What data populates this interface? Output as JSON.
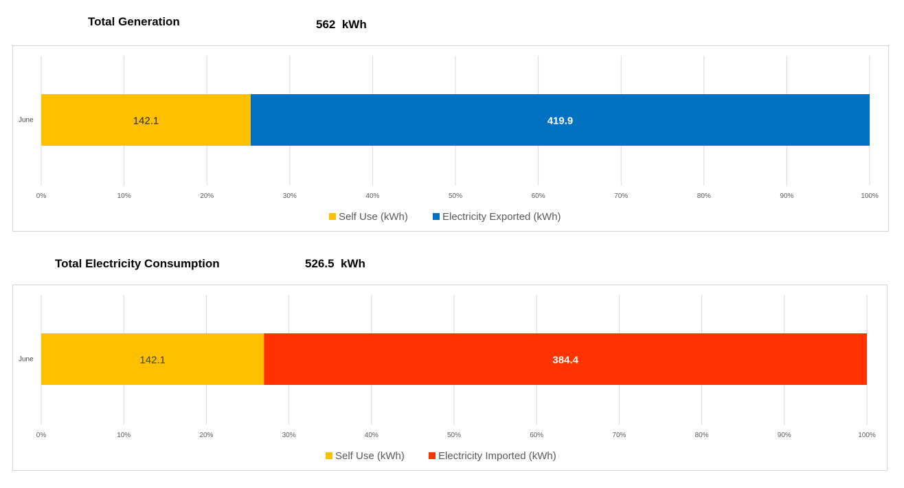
{
  "charts": [
    {
      "heading": "Total Generation",
      "total_value": "562",
      "total_unit": "kWh",
      "chart_data": {
        "type": "bar",
        "orientation": "horizontal",
        "stacked": "100%",
        "categories": [
          "June"
        ],
        "series": [
          {
            "name": "Self Use (kWh)",
            "values": [
              142.1
            ],
            "color": "#FFC000",
            "label_color": "#262626"
          },
          {
            "name": "Electricity Exported (kWh)",
            "values": [
              419.9
            ],
            "color": "#0070C0",
            "label_color": "#FFFFFF"
          }
        ],
        "xticks": [
          "0%",
          "10%",
          "20%",
          "30%",
          "40%",
          "50%",
          "60%",
          "70%",
          "80%",
          "90%",
          "100%"
        ],
        "xlim": [
          0,
          100
        ],
        "grid": true,
        "legend": "bottom"
      }
    },
    {
      "heading": "Total Electricity Consumption",
      "total_value": "526.5",
      "total_unit": "kWh",
      "chart_data": {
        "type": "bar",
        "orientation": "horizontal",
        "stacked": "100%",
        "categories": [
          "June"
        ],
        "series": [
          {
            "name": "Self Use (kWh)",
            "values": [
              142.1
            ],
            "color": "#FFC000",
            "label_color": "#404040"
          },
          {
            "name": "Electricity Imported (kWh)",
            "values": [
              384.4
            ],
            "color": "#FF3300",
            "label_color": "#FFFFFF"
          }
        ],
        "xticks": [
          "0%",
          "10%",
          "20%",
          "30%",
          "40%",
          "50%",
          "60%",
          "70%",
          "80%",
          "90%",
          "100%"
        ],
        "xlim": [
          0,
          100
        ],
        "grid": true,
        "legend": "bottom"
      }
    }
  ]
}
